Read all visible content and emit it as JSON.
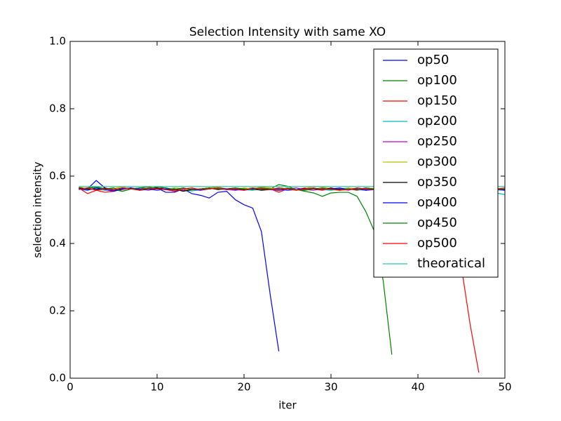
{
  "chart_data": {
    "type": "line",
    "title": "Selection Intensity with same XO",
    "xlabel": "iter",
    "ylabel": "selection intensity",
    "xlim": [
      0,
      50
    ],
    "ylim": [
      0,
      1
    ],
    "xticks": [
      0,
      10,
      20,
      30,
      40,
      50
    ],
    "yticks": [
      {
        "value": 0,
        "label": "0.0"
      },
      0.2,
      0.4,
      0.6,
      0.8,
      {
        "value": 1,
        "label": "1.0"
      }
    ],
    "legend": "upper right",
    "x": [
      1,
      2,
      3,
      4,
      5,
      6,
      7,
      8,
      9,
      10,
      11,
      12,
      13,
      14,
      15,
      16,
      17,
      18,
      19,
      20,
      21,
      22,
      23,
      24,
      25,
      26,
      27,
      28,
      29,
      30,
      31,
      32,
      33,
      34,
      35,
      36,
      37,
      38,
      39,
      40,
      41,
      42,
      43,
      44,
      45,
      46,
      47,
      48,
      49,
      50
    ],
    "series": [
      {
        "name": "op50",
        "color": "#0000ff",
        "values": [
          0.565,
          0.562,
          0.587,
          0.565,
          0.555,
          0.565,
          0.562,
          0.565,
          0.562,
          0.565,
          0.552,
          0.552,
          0.562,
          0.548,
          0.543,
          0.535,
          0.552,
          0.555,
          0.53,
          0.515,
          0.505,
          0.435,
          0.25,
          0.08,
          null,
          null,
          null,
          null,
          null,
          null,
          null,
          null,
          null,
          null,
          null,
          null,
          null,
          null,
          null,
          null,
          null,
          null,
          null,
          null,
          null,
          null,
          null,
          null,
          null,
          null
        ]
      },
      {
        "name": "op100",
        "color": "#008000",
        "values": [
          0.565,
          0.562,
          0.568,
          0.562,
          0.56,
          0.555,
          0.562,
          0.565,
          0.568,
          0.562,
          0.56,
          0.565,
          0.562,
          0.558,
          0.56,
          0.562,
          0.565,
          0.562,
          0.56,
          0.562,
          0.565,
          0.56,
          0.562,
          0.575,
          0.57,
          0.56,
          0.555,
          0.55,
          0.54,
          0.55,
          0.552,
          0.552,
          0.54,
          0.495,
          0.435,
          0.29,
          0.07,
          null,
          null,
          null,
          null,
          null,
          null,
          null,
          null,
          null,
          null,
          null,
          null,
          null
        ]
      },
      {
        "name": "op150",
        "color": "#ff0000",
        "values": [
          0.565,
          0.548,
          0.558,
          0.552,
          0.555,
          0.562,
          0.565,
          0.558,
          0.562,
          0.565,
          0.56,
          0.558,
          0.562,
          0.558,
          0.562,
          0.565,
          0.56,
          0.562,
          0.558,
          0.562,
          0.56,
          0.565,
          0.562,
          0.552,
          0.562,
          0.56,
          0.565,
          0.562,
          0.558,
          0.562,
          0.56,
          0.562,
          0.558,
          0.562,
          0.56,
          0.565,
          0.56,
          0.562,
          0.558,
          0.562,
          0.56,
          0.558,
          0.56,
          0.5,
          0.33,
          0.16,
          0.017,
          null,
          null,
          null
        ]
      },
      {
        "name": "op200",
        "color": "#00bfbf",
        "values": [
          0.565,
          0.56,
          0.562,
          0.558,
          0.56,
          0.563,
          0.565,
          0.558,
          0.56,
          0.562,
          0.565,
          0.56,
          0.558,
          0.556,
          0.56,
          0.562,
          0.565,
          0.56,
          0.563,
          0.56,
          0.558,
          0.562,
          0.565,
          0.56,
          0.562,
          0.558,
          0.56,
          0.563,
          0.56,
          0.558,
          0.562,
          0.565,
          0.56,
          0.558,
          0.562,
          0.56,
          0.565,
          0.562,
          0.56,
          0.558,
          0.56,
          0.562,
          0.56,
          0.558,
          0.555,
          0.56,
          0.558,
          0.555,
          0.55,
          0.545
        ]
      },
      {
        "name": "op250",
        "color": "#bf00bf",
        "values": [
          0.562,
          0.565,
          0.56,
          0.563,
          0.558,
          0.56,
          0.565,
          0.562,
          0.558,
          0.563,
          0.565,
          0.56,
          0.557,
          0.562,
          0.56,
          0.565,
          0.563,
          0.56,
          0.558,
          0.562,
          0.56,
          0.565,
          0.56,
          0.557,
          0.562,
          0.565,
          0.56,
          0.558,
          0.563,
          0.56,
          0.562,
          0.558,
          0.565,
          0.56,
          0.562,
          0.563,
          0.558,
          0.56,
          0.565,
          0.562,
          0.56,
          0.558,
          0.562,
          0.565,
          0.56,
          0.562,
          0.558,
          0.56,
          0.563,
          0.56
        ]
      },
      {
        "name": "op300",
        "color": "#bfbf00",
        "values": [
          0.568,
          0.562,
          0.565,
          0.56,
          0.563,
          0.568,
          0.562,
          0.558,
          0.565,
          0.562,
          0.56,
          0.565,
          0.562,
          0.558,
          0.56,
          0.565,
          0.568,
          0.562,
          0.56,
          0.565,
          0.562,
          0.568,
          0.565,
          0.56,
          0.562,
          0.558,
          0.563,
          0.57,
          0.568,
          0.562,
          0.56,
          0.565,
          0.562,
          0.558,
          0.56,
          0.565,
          0.562,
          0.56,
          0.558,
          0.562,
          0.565,
          0.56,
          0.562,
          0.558,
          0.56,
          0.563,
          0.56,
          0.562,
          0.558,
          0.56
        ]
      },
      {
        "name": "op350",
        "color": "#000000",
        "values": [
          0.565,
          0.562,
          0.56,
          0.565,
          0.56,
          0.562,
          0.565,
          0.558,
          0.562,
          0.565,
          0.56,
          0.562,
          0.555,
          0.56,
          0.562,
          0.565,
          0.56,
          0.562,
          0.565,
          0.56,
          0.562,
          0.558,
          0.56,
          0.565,
          0.562,
          0.56,
          0.563,
          0.562,
          0.56,
          0.565,
          0.56,
          0.562,
          0.56,
          0.565,
          0.562,
          0.56,
          0.558,
          0.562,
          0.565,
          0.56,
          0.562,
          0.56,
          0.558,
          0.562,
          0.56,
          0.565,
          0.562,
          0.56,
          0.562,
          0.56
        ]
      },
      {
        "name": "op400",
        "color": "#0000ff",
        "values": [
          0.562,
          0.558,
          0.565,
          0.56,
          0.555,
          0.562,
          0.565,
          0.56,
          0.562,
          0.558,
          0.562,
          0.56,
          0.565,
          0.56,
          0.558,
          0.562,
          0.565,
          0.562,
          0.56,
          0.558,
          0.562,
          0.565,
          0.56,
          0.562,
          0.558,
          0.56,
          0.562,
          0.565,
          0.56,
          0.562,
          0.565,
          0.56,
          0.562,
          0.558,
          0.56,
          0.562,
          0.565,
          0.56,
          0.562,
          0.558,
          0.56,
          0.562,
          0.565,
          0.56,
          0.562,
          0.558,
          0.56,
          0.562,
          0.56,
          0.558
        ]
      },
      {
        "name": "op450",
        "color": "#008000",
        "values": [
          0.56,
          0.565,
          0.568,
          0.562,
          0.565,
          0.555,
          0.562,
          0.565,
          0.562,
          0.568,
          0.565,
          0.56,
          0.565,
          0.56,
          0.562,
          0.565,
          0.562,
          0.56,
          0.565,
          0.562,
          0.56,
          0.565,
          0.562,
          0.56,
          0.565,
          0.56,
          0.558,
          0.562,
          0.565,
          0.56,
          0.558,
          0.562,
          0.56,
          0.565,
          0.562,
          0.56,
          0.565,
          0.562,
          0.56,
          0.558,
          0.562,
          0.56,
          0.565,
          0.562,
          0.56,
          0.558,
          0.562,
          0.565,
          0.56,
          0.562
        ]
      },
      {
        "name": "op500",
        "color": "#ff0000",
        "values": [
          0.56,
          0.565,
          0.558,
          0.562,
          0.56,
          0.565,
          0.562,
          0.558,
          0.565,
          0.562,
          0.56,
          0.555,
          0.562,
          0.565,
          0.56,
          0.562,
          0.565,
          0.56,
          0.562,
          0.558,
          0.565,
          0.562,
          0.56,
          0.565,
          0.562,
          0.558,
          0.562,
          0.565,
          0.56,
          0.562,
          0.558,
          0.56,
          0.565,
          0.562,
          0.56,
          0.558,
          0.562,
          0.565,
          0.56,
          0.562,
          0.558,
          0.56,
          0.562,
          0.565,
          0.56,
          0.562,
          0.558,
          0.56,
          0.562,
          0.565
        ]
      },
      {
        "name": "theoratical",
        "color": "#2ec4a8",
        "values": [
          0.569,
          0.569,
          0.569,
          0.569,
          0.569,
          0.569,
          0.569,
          0.569,
          0.569,
          0.569,
          0.569,
          0.569,
          0.569,
          0.569,
          0.569,
          0.569,
          0.569,
          0.569,
          0.569,
          0.569,
          0.569,
          0.569,
          0.569,
          0.569,
          0.569,
          0.569,
          0.569,
          0.569,
          0.569,
          0.569,
          0.569,
          0.569,
          0.569,
          0.569,
          0.569,
          0.569,
          0.569,
          0.569,
          0.569,
          0.569,
          0.569,
          0.569,
          0.569,
          0.569,
          0.569,
          0.569,
          0.569,
          0.569,
          0.569,
          0.569
        ]
      }
    ]
  }
}
